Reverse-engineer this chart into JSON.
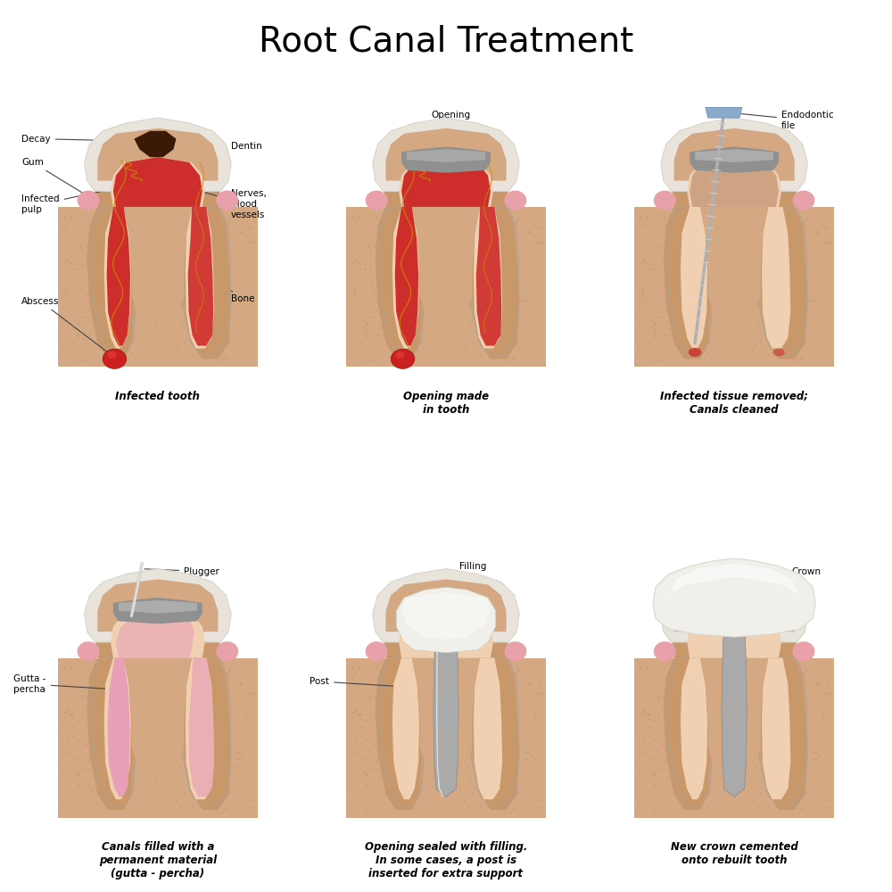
{
  "title": "Root Canal Treatment",
  "title_fontsize": 28,
  "title_fontweight": "normal",
  "background_color": "#ffffff",
  "panels": [
    {
      "row": 0,
      "col": 0,
      "caption": "Infected tooth",
      "tooth_type": "infected"
    },
    {
      "row": 0,
      "col": 1,
      "caption": "Opening made\nin tooth",
      "tooth_type": "opening"
    },
    {
      "row": 0,
      "col": 2,
      "caption": "Infected tissue removed;\nCanals cleaned",
      "tooth_type": "cleaned"
    },
    {
      "row": 1,
      "col": 0,
      "caption": "Canals filled with a\npermanent material\n(gutta - percha)",
      "tooth_type": "filled"
    },
    {
      "row": 1,
      "col": 1,
      "caption": "Opening sealed with filling.\nIn some cases, a post is\ninserted for extra support",
      "tooth_type": "sealed"
    },
    {
      "row": 1,
      "col": 2,
      "caption": "New crown cemented\nonto rebuilt tooth",
      "tooth_type": "crown"
    }
  ],
  "colors": {
    "bone": "#D4A882",
    "bone_stipple": "#B8926A",
    "dentin_outer": "#C8976A",
    "dentin_inner": "#D4A882",
    "enamel": "#E8E4DC",
    "enamel_outer": "#D8D4CC",
    "gum": "#E8A0AA",
    "pulp_light": "#F0D0B0",
    "pulp_red": "#CC2020",
    "pulp_red_dark": "#AA1818",
    "nerve_gold": "#CC8800",
    "decay": "#3A1A04",
    "abscess_red": "#CC2020",
    "gutta_percha": "#E8A0B8",
    "post_gray": "#AAAAAA",
    "crown_white": "#F0EFEA",
    "filling_white": "#F0EFEA",
    "file_gray": "#B0B0B0",
    "file_blue": "#88AACC",
    "plug_gray": "#C0C0C0",
    "root_canal_bg": "#E8C090",
    "cement": "#AAAAAA",
    "bone_side": "#C8A070"
  }
}
